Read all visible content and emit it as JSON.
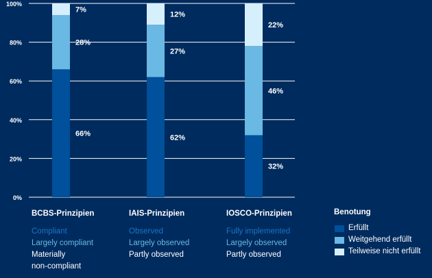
{
  "chart_data": {
    "type": "bar",
    "stacked": true,
    "ylim": [
      0,
      100
    ],
    "yticks": [
      "0%",
      "20%",
      "40%",
      "60%",
      "80%",
      "100%"
    ],
    "grid": true,
    "categories": [
      "BCBS-Prinzipien",
      "IAIS-Prinzipien",
      "IOSCO-Prinzipien"
    ],
    "series": [
      {
        "name": "Erfüllt",
        "color": "#00509b",
        "values": [
          66,
          62,
          32
        ],
        "labels": [
          "66%",
          "62%",
          "32%"
        ]
      },
      {
        "name": "Weitgehend erfüllt",
        "color": "#6ab8e4",
        "values": [
          28,
          27,
          46
        ],
        "labels": [
          "28%",
          "27%",
          "46%"
        ]
      },
      {
        "name": "Teilweise nicht erfüllt",
        "color": "#d6effc",
        "values": [
          7,
          12,
          22
        ],
        "labels": [
          "7%",
          "12%",
          "22%"
        ]
      }
    ]
  },
  "categories_detail": [
    {
      "title": "BCBS-Prinzipien",
      "lines": [
        {
          "text": "Compliant",
          "color": "#1c73c5"
        },
        {
          "text": "Largely compliant",
          "color": "#6ab8e4"
        },
        {
          "text": "Materially",
          "color": "#ffffff"
        },
        {
          "text": "non-compliant",
          "color": "#ffffff"
        }
      ]
    },
    {
      "title": "IAIS-Prinzipien",
      "lines": [
        {
          "text": "Observed",
          "color": "#1c73c5"
        },
        {
          "text": "Largely observed",
          "color": "#6ab8e4"
        },
        {
          "text": "Partly observed",
          "color": "#ffffff"
        }
      ]
    },
    {
      "title": "IOSCO-Prinzipien",
      "lines": [
        {
          "text": "Fully implemented",
          "color": "#1c73c5"
        },
        {
          "text": "Largely observed",
          "color": "#6ab8e4"
        },
        {
          "text": "Partly observed",
          "color": "#ffffff"
        }
      ]
    }
  ],
  "legend": {
    "title": "Benotung",
    "items": [
      {
        "label": "Erfüllt",
        "color": "#00509b"
      },
      {
        "label": "Weitgehend erfüllt",
        "color": "#6ab8e4"
      },
      {
        "label": "Teilweise nicht erfüllt",
        "color": "#d6effc"
      }
    ]
  }
}
